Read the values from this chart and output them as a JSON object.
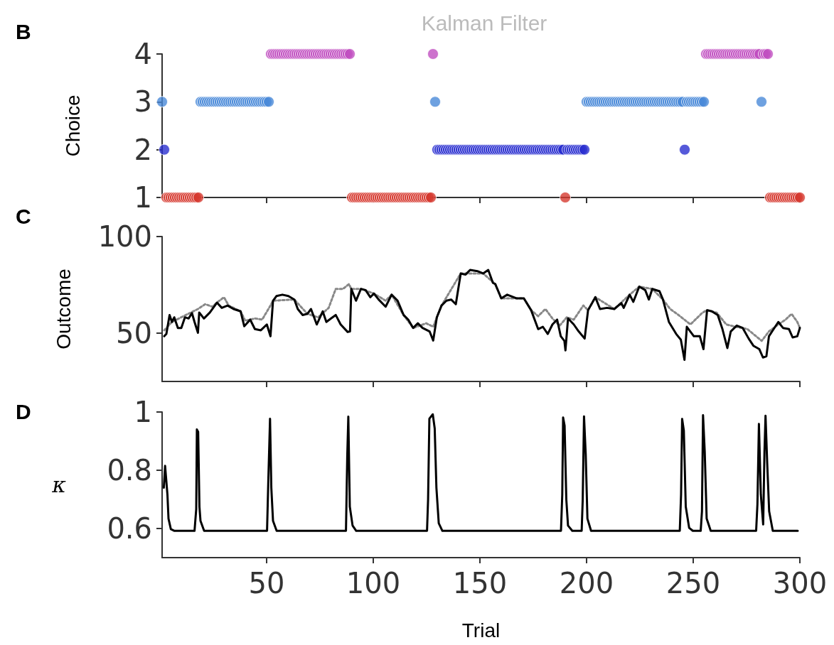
{
  "chart_data": [
    {
      "type": "scatter",
      "title": "Kalman Filter",
      "ylabel": "Choice",
      "annotations": [
        "B"
      ],
      "marker": "circle",
      "tick_labels": "y",
      "xlim": [
        1,
        300
      ],
      "xticks": [
        50,
        100,
        150,
        200,
        250,
        300
      ],
      "ylim": [
        1,
        4
      ],
      "yticks": [
        1,
        2,
        3,
        4
      ],
      "series": [
        {
          "color": "#d63a2f",
          "x": [
            3,
            4,
            5,
            6,
            7,
            8,
            9,
            10,
            11,
            12,
            13,
            14,
            15,
            16,
            17,
            18,
            90,
            91,
            92,
            93,
            94,
            95,
            96,
            97,
            98,
            99,
            100,
            101,
            102,
            103,
            104,
            105,
            106,
            107,
            108,
            109,
            110,
            111,
            112,
            113,
            114,
            115,
            116,
            117,
            118,
            119,
            120,
            121,
            122,
            123,
            124,
            125,
            126,
            127,
            190,
            286,
            287,
            288,
            289,
            290,
            291,
            292,
            293,
            294,
            295,
            296,
            297,
            298,
            299,
            300
          ],
          "values": [
            1,
            1,
            1,
            1,
            1,
            1,
            1,
            1,
            1,
            1,
            1,
            1,
            1,
            1,
            1,
            1,
            1,
            1,
            1,
            1,
            1,
            1,
            1,
            1,
            1,
            1,
            1,
            1,
            1,
            1,
            1,
            1,
            1,
            1,
            1,
            1,
            1,
            1,
            1,
            1,
            1,
            1,
            1,
            1,
            1,
            1,
            1,
            1,
            1,
            1,
            1,
            1,
            1,
            1,
            1,
            1,
            1,
            1,
            1,
            1,
            1,
            1,
            1,
            1,
            1,
            1,
            1,
            1,
            1,
            1
          ]
        },
        {
          "color": "#2b2fd0",
          "x": [
            2,
            130,
            131,
            132,
            133,
            134,
            135,
            136,
            137,
            138,
            139,
            140,
            141,
            142,
            143,
            144,
            145,
            146,
            147,
            148,
            149,
            150,
            151,
            152,
            153,
            154,
            155,
            156,
            157,
            158,
            159,
            160,
            161,
            162,
            163,
            164,
            165,
            166,
            167,
            168,
            169,
            170,
            171,
            172,
            173,
            174,
            175,
            176,
            177,
            178,
            179,
            180,
            181,
            182,
            183,
            184,
            185,
            186,
            187,
            188,
            189,
            191,
            192,
            193,
            194,
            195,
            196,
            197,
            198,
            199,
            246
          ],
          "values": [
            2,
            2,
            2,
            2,
            2,
            2,
            2,
            2,
            2,
            2,
            2,
            2,
            2,
            2,
            2,
            2,
            2,
            2,
            2,
            2,
            2,
            2,
            2,
            2,
            2,
            2,
            2,
            2,
            2,
            2,
            2,
            2,
            2,
            2,
            2,
            2,
            2,
            2,
            2,
            2,
            2,
            2,
            2,
            2,
            2,
            2,
            2,
            2,
            2,
            2,
            2,
            2,
            2,
            2,
            2,
            2,
            2,
            2,
            2,
            2,
            2,
            2,
            2,
            2,
            2,
            2,
            2,
            2,
            2,
            2,
            2
          ]
        },
        {
          "color": "#4a8ad8",
          "x": [
            1,
            19,
            20,
            21,
            22,
            23,
            24,
            25,
            26,
            27,
            28,
            29,
            30,
            31,
            32,
            33,
            34,
            35,
            36,
            37,
            38,
            39,
            40,
            41,
            42,
            43,
            44,
            45,
            46,
            47,
            48,
            49,
            50,
            51,
            129,
            200,
            201,
            202,
            203,
            204,
            205,
            206,
            207,
            208,
            209,
            210,
            211,
            212,
            213,
            214,
            215,
            216,
            217,
            218,
            219,
            220,
            221,
            222,
            223,
            224,
            225,
            226,
            227,
            228,
            229,
            230,
            231,
            232,
            233,
            234,
            235,
            236,
            237,
            238,
            239,
            240,
            241,
            242,
            243,
            244,
            245,
            247,
            248,
            249,
            250,
            251,
            252,
            253,
            254,
            255,
            282
          ],
          "values": [
            3,
            3,
            3,
            3,
            3,
            3,
            3,
            3,
            3,
            3,
            3,
            3,
            3,
            3,
            3,
            3,
            3,
            3,
            3,
            3,
            3,
            3,
            3,
            3,
            3,
            3,
            3,
            3,
            3,
            3,
            3,
            3,
            3,
            3,
            3,
            3,
            3,
            3,
            3,
            3,
            3,
            3,
            3,
            3,
            3,
            3,
            3,
            3,
            3,
            3,
            3,
            3,
            3,
            3,
            3,
            3,
            3,
            3,
            3,
            3,
            3,
            3,
            3,
            3,
            3,
            3,
            3,
            3,
            3,
            3,
            3,
            3,
            3,
            3,
            3,
            3,
            3,
            3,
            3,
            3,
            3,
            3,
            3,
            3,
            3,
            3,
            3,
            3,
            3,
            3,
            3
          ]
        },
        {
          "color": "#c04fc0",
          "x": [
            52,
            53,
            54,
            55,
            56,
            57,
            58,
            59,
            60,
            61,
            62,
            63,
            64,
            65,
            66,
            67,
            68,
            69,
            70,
            71,
            72,
            73,
            74,
            75,
            76,
            77,
            78,
            79,
            80,
            81,
            82,
            83,
            84,
            85,
            86,
            87,
            88,
            89,
            128,
            256,
            257,
            258,
            259,
            260,
            261,
            262,
            263,
            264,
            265,
            266,
            267,
            268,
            269,
            270,
            271,
            272,
            273,
            274,
            275,
            276,
            277,
            278,
            279,
            280,
            281,
            283,
            284,
            285
          ],
          "values": [
            4,
            4,
            4,
            4,
            4,
            4,
            4,
            4,
            4,
            4,
            4,
            4,
            4,
            4,
            4,
            4,
            4,
            4,
            4,
            4,
            4,
            4,
            4,
            4,
            4,
            4,
            4,
            4,
            4,
            4,
            4,
            4,
            4,
            4,
            4,
            4,
            4,
            4,
            4,
            4,
            4,
            4,
            4,
            4,
            4,
            4,
            4,
            4,
            4,
            4,
            4,
            4,
            4,
            4,
            4,
            4,
            4,
            4,
            4,
            4,
            4,
            4,
            4,
            4,
            4,
            4,
            4,
            4
          ]
        }
      ]
    },
    {
      "type": "line",
      "ylabel": "Outcome",
      "annotations": [
        "C"
      ],
      "tick_labels": "y",
      "xlim": [
        1,
        300
      ],
      "xticks": [
        50,
        100,
        150,
        200,
        250,
        300
      ],
      "ylim": [
        25,
        100
      ],
      "yticks": [
        50,
        100
      ],
      "series": [
        {
          "color": "#888888",
          "line_style": "dotted",
          "x": [
            2,
            5.6,
            17.8,
            21.2,
            24.5,
            26.7,
            30,
            32.2,
            37.8,
            40,
            44.5,
            47.9,
            51.8,
            53,
            63,
            69.1,
            74.1,
            79.1,
            82.4,
            85.8,
            88.6,
            89.7,
            94.2,
            100.3,
            105.8,
            108.6,
            114.2,
            118.7,
            124.8,
            128.1,
            129.8,
            132,
            141,
            151.5,
            157.2,
            160,
            167.3,
            170.6,
            174,
            177.3,
            180.7,
            184,
            187.4,
            190.7,
            194,
            198.5,
            200.7,
            204.1,
            213,
            220.2,
            224.7,
            230.8,
            235.8,
            239.2,
            243.1,
            248.7,
            254.3,
            256.5,
            261,
            265.5,
            269.9,
            275.4,
            278.8,
            282.1,
            285.5,
            289.9,
            293.3,
            296.1,
            298.8,
            300
          ],
          "values": [
            51.5,
            55.8,
            62.5,
            65,
            63.7,
            65.8,
            68.6,
            64.3,
            61.3,
            56.4,
            57.6,
            57,
            64.3,
            66.8,
            67.4,
            60,
            58.2,
            63.1,
            72.9,
            72.9,
            75.4,
            72.9,
            72.9,
            70.5,
            66.8,
            69.9,
            59.4,
            52.7,
            55.1,
            53.3,
            58.2,
            64.3,
            80.9,
            80.9,
            75.4,
            68,
            68,
            68,
            61.9,
            58.8,
            62.5,
            57.6,
            53.9,
            58.2,
            57,
            64.3,
            61.9,
            68.6,
            62.5,
            69.9,
            74.1,
            72.9,
            67.4,
            62.5,
            59.4,
            54.5,
            60.6,
            61.9,
            60.6,
            54.5,
            53.3,
            52.1,
            49,
            46,
            50.9,
            54.5,
            57,
            60,
            55.8,
            52.7
          ]
        },
        {
          "color": "#000000",
          "line_style": "solid",
          "x": [
            2,
            3,
            4.5,
            5.6,
            6.7,
            8.4,
            10,
            11.7,
            13.4,
            15,
            16.2,
            17.8,
            18.4,
            20.6,
            23.4,
            26.7,
            29,
            31.7,
            34.5,
            37.8,
            39.5,
            42.3,
            44.5,
            47.3,
            50.1,
            51.8,
            53,
            54.6,
            57.4,
            60.2,
            63,
            64.6,
            66.9,
            69.1,
            70.8,
            73.5,
            76.3,
            78,
            80.2,
            82.4,
            84.7,
            88,
            89.1,
            89.7,
            91.9,
            94.2,
            96.4,
            98.6,
            100.3,
            102.5,
            105.8,
            108.6,
            111.4,
            114.2,
            116.4,
            118.7,
            120.9,
            123.1,
            126.4,
            128.1,
            129.8,
            132,
            134.3,
            136.5,
            138.7,
            141,
            143.2,
            145.4,
            148.8,
            151.5,
            153.9,
            156.1,
            157.2,
            160,
            162.8,
            167.3,
            170.6,
            174,
            177.3,
            179.5,
            181.8,
            184,
            186.2,
            187.9,
            189.6,
            190.1,
            191.3,
            194,
            196.3,
            199.1,
            200.7,
            204.1,
            206.3,
            209.6,
            213,
            216.3,
            217.4,
            220.2,
            221.9,
            224.7,
            227.5,
            229.2,
            230.8,
            234.2,
            235.8,
            238.6,
            242,
            244.2,
            245.9,
            247,
            250.3,
            253.1,
            254.8,
            256.5,
            258.7,
            261.5,
            263.7,
            266,
            267.6,
            270.4,
            273.2,
            276,
            278.2,
            281,
            282.7,
            284.3,
            285.5,
            287.7,
            289.9,
            292.1,
            294.9,
            296.6,
            298.8,
            300
          ],
          "values": [
            48.4,
            49.6,
            59.4,
            55.8,
            58.2,
            52.7,
            52.7,
            58.2,
            57.6,
            60.4,
            55.8,
            50.2,
            60.7,
            57.6,
            60.7,
            65.8,
            63.1,
            64.3,
            62.5,
            61.3,
            53.6,
            57,
            52.1,
            51.5,
            54.5,
            48.4,
            66.8,
            69.2,
            69.9,
            69.2,
            67.4,
            62.5,
            59.4,
            60,
            62.5,
            54.5,
            61.3,
            55.8,
            57.6,
            59.4,
            54.5,
            50.6,
            50.9,
            72.9,
            66.8,
            72.9,
            72.3,
            68.6,
            70.5,
            67.4,
            63.7,
            69.9,
            66.8,
            59.4,
            57,
            52.7,
            55.1,
            52.7,
            50.9,
            46.2,
            58.2,
            64.3,
            66.8,
            67.4,
            65,
            80.9,
            80.3,
            82.7,
            82.1,
            80.9,
            82.7,
            76,
            75.4,
            68,
            69.9,
            68,
            68,
            61.9,
            52.1,
            53.3,
            49.6,
            54.5,
            57,
            48.4,
            46,
            41.1,
            57.6,
            54.5,
            50.9,
            47.2,
            61.9,
            68.6,
            62.5,
            63.1,
            62.5,
            65.6,
            63.1,
            69.9,
            66.2,
            74.1,
            72.3,
            67.4,
            72.9,
            71.7,
            67.4,
            55.8,
            49.6,
            46.6,
            36.2,
            53.3,
            48.4,
            48.4,
            41.7,
            61.9,
            61.3,
            59.4,
            52.1,
            42.3,
            50.9,
            53.9,
            52.7,
            47.2,
            43.5,
            41.7,
            37.4,
            38,
            48.4,
            52.1,
            55.8,
            52.7,
            52.1,
            47.8,
            48.4,
            52.7
          ]
        }
      ]
    },
    {
      "type": "line",
      "ylabel": "κ",
      "xlabel": "Trial",
      "annotations": [
        "D"
      ],
      "line_style": "solid",
      "xlim": [
        1,
        300
      ],
      "xticks": [
        50,
        100,
        150,
        200,
        250,
        300
      ],
      "ylim": [
        0.5,
        1
      ],
      "yticks": [
        0.6,
        0.8,
        1
      ],
      "series": [
        {
          "color": "#000000",
          "x": [
            1.8,
            2.4,
            3.5,
            4,
            5.1,
            6.8,
            16.2,
            17,
            17.3,
            17.9,
            18.5,
            19,
            20.7,
            50.2,
            50.8,
            51.6,
            52.2,
            53,
            54.7,
            87.2,
            87.8,
            88.3,
            89,
            90.3,
            92,
            125.2,
            125.7,
            126.3,
            127.9,
            128.8,
            129.6,
            130.7,
            132.4,
            188,
            188.6,
            189,
            189.7,
            190.5,
            191.3,
            193.3,
            197.7,
            198.2,
            198.8,
            199.6,
            200.4,
            202.1,
            243.7,
            244.3,
            244.8,
            245.6,
            246.5,
            248.1,
            249.8,
            253.5,
            254.1,
            254.6,
            255.4,
            256.3,
            258.2,
            279.5,
            280.1,
            280.8,
            281.7,
            282.8,
            283.4,
            283.9,
            284.7,
            285.6,
            287.3,
            299
          ],
          "values": [
            0.74,
            0.815,
            0.716,
            0.634,
            0.598,
            0.592,
            0.592,
            0.667,
            0.94,
            0.932,
            0.675,
            0.626,
            0.592,
            0.592,
            0.765,
            0.977,
            0.74,
            0.626,
            0.592,
            0.592,
            0.847,
            0.984,
            0.675,
            0.61,
            0.592,
            0.592,
            0.7,
            0.977,
            0.992,
            0.944,
            0.74,
            0.618,
            0.592,
            0.592,
            0.716,
            0.981,
            0.953,
            0.7,
            0.61,
            0.592,
            0.592,
            0.7,
            0.985,
            0.855,
            0.634,
            0.592,
            0.592,
            0.716,
            0.976,
            0.936,
            0.675,
            0.602,
            0.592,
            0.592,
            0.659,
            0.989,
            0.863,
            0.634,
            0.592,
            0.592,
            0.683,
            0.959,
            0.716,
            0.614,
            0.863,
            0.987,
            0.822,
            0.659,
            0.592,
            0.592
          ]
        }
      ]
    }
  ]
}
